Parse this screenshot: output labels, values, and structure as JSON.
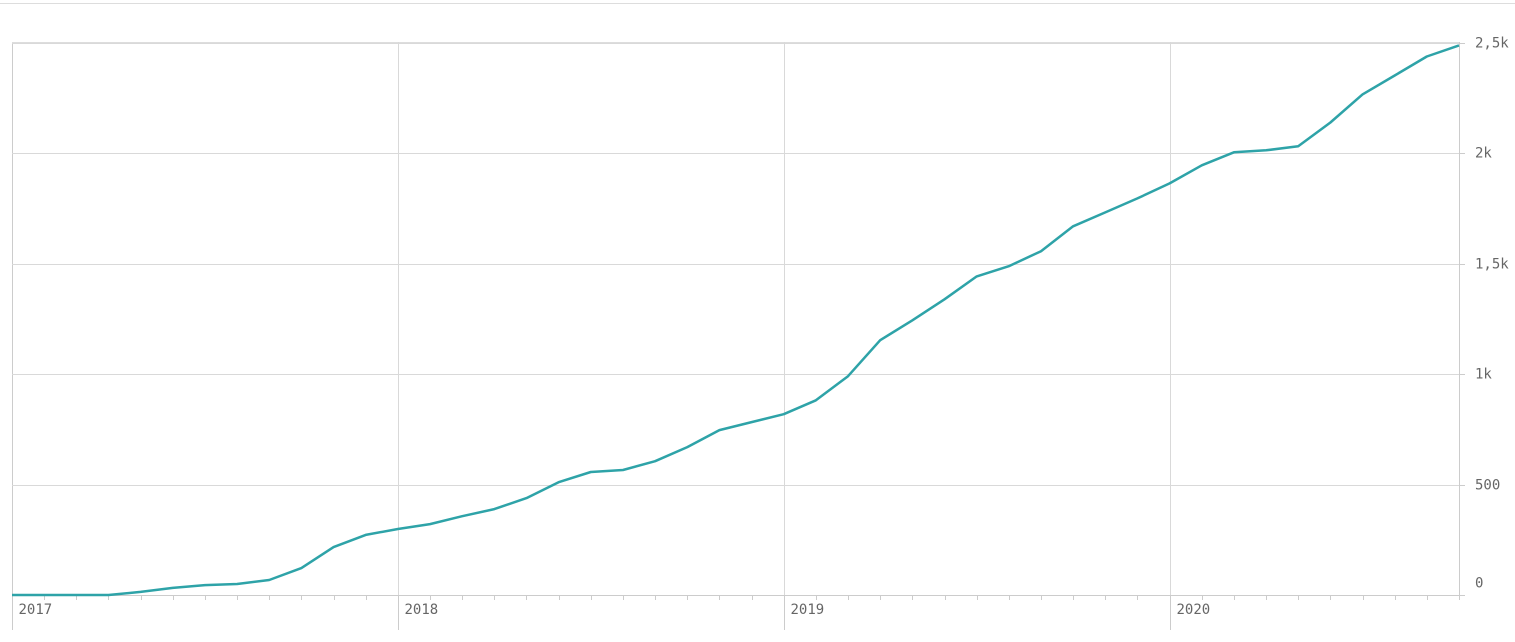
{
  "chart_data": {
    "type": "line",
    "categories": [
      "2017",
      null,
      null,
      null,
      null,
      null,
      null,
      null,
      null,
      null,
      null,
      null,
      "2018",
      null,
      null,
      null,
      null,
      null,
      null,
      null,
      null,
      null,
      null,
      null,
      "2019",
      null,
      null,
      null,
      null,
      null,
      null,
      null,
      null,
      null,
      null,
      null,
      "2020",
      null,
      null,
      null,
      null,
      null,
      null,
      null,
      null,
      null
    ],
    "series": [
      {
        "color": "#2ea3a8",
        "values": [
          0,
          0,
          0,
          0,
          14,
          32,
          45,
          50,
          68,
          122,
          217,
          272,
          299,
          321,
          357,
          389,
          439,
          511,
          557,
          566,
          606,
          670,
          747,
          783,
          819,
          882,
          991,
          1154,
          1244,
          1339,
          1443,
          1489,
          1557,
          1670,
          1733,
          1796,
          1864,
          1946,
          2005,
          2014,
          2032,
          2140,
          2267,
          2353,
          2439,
          2489
        ]
      }
    ],
    "ylim": [
      0,
      2500
    ],
    "yticks": [
      0,
      500,
      {
        "value": 1000,
        "label": "1k"
      },
      {
        "value": 1500,
        "label": "1,5k"
      },
      {
        "value": 2000,
        "label": "2k"
      },
      {
        "value": 2500,
        "label": "2,5k"
      }
    ],
    "grid": true,
    "y_axis_side": "right"
  }
}
